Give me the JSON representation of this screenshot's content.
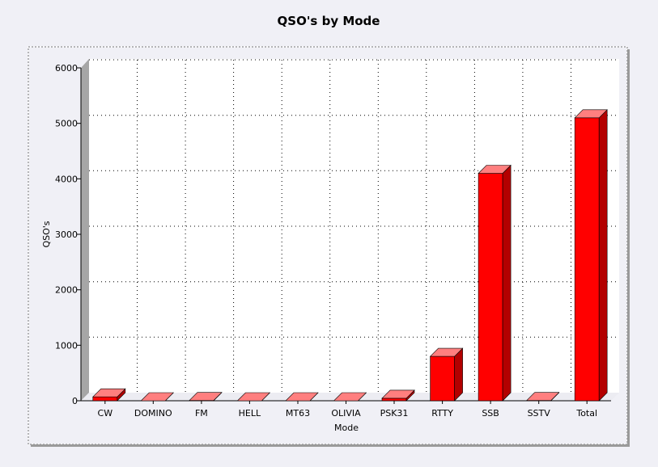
{
  "chart_data": {
    "type": "bar",
    "title": "QSO's by Mode",
    "xlabel": "Mode",
    "ylabel": "QSO's",
    "categories": [
      "CW",
      "DOMINO",
      "FM",
      "HELL",
      "MT63",
      "OLIVIA",
      "PSK31",
      "RTTY",
      "SSB",
      "SSTV",
      "Total"
    ],
    "values": [
      70,
      0,
      5,
      0,
      0,
      0,
      45,
      800,
      4100,
      5,
      5100
    ],
    "ylim": [
      0,
      6000
    ],
    "yticks": [
      0,
      1000,
      2000,
      3000,
      4000,
      5000,
      6000
    ],
    "grid": true,
    "legend": "none",
    "colors": {
      "bar_front": "#ff0000",
      "bar_top": "#ff7f7f",
      "bar_side": "#b30000",
      "floor": "#ececf2",
      "left_wall": "#a6a6a6",
      "plot_bg": "#ffffff",
      "grid": "#000000"
    }
  }
}
